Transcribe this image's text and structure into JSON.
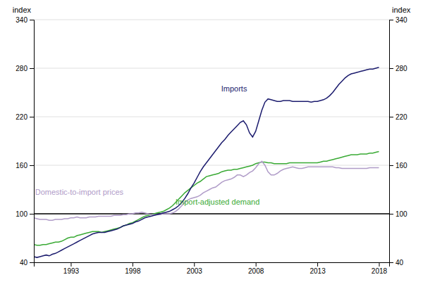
{
  "chart_data": {
    "type": "line",
    "ylabel": "index",
    "y2label": "index",
    "x": [
      1990,
      1990.25,
      1990.5,
      1990.75,
      1991,
      1991.25,
      1991.5,
      1991.75,
      1992,
      1992.25,
      1992.5,
      1992.75,
      1993,
      1993.25,
      1993.5,
      1993.75,
      1994,
      1994.25,
      1994.5,
      1994.75,
      1995,
      1995.25,
      1995.5,
      1995.75,
      1996,
      1996.25,
      1996.5,
      1996.75,
      1997,
      1997.25,
      1997.5,
      1997.75,
      1998,
      1998.25,
      1998.5,
      1998.75,
      1999,
      1999.25,
      1999.5,
      1999.75,
      2000,
      2000.25,
      2000.5,
      2000.75,
      2001,
      2001.25,
      2001.5,
      2001.75,
      2002,
      2002.25,
      2002.5,
      2002.75,
      2003,
      2003.25,
      2003.5,
      2003.75,
      2004,
      2004.25,
      2004.5,
      2004.75,
      2005,
      2005.25,
      2005.5,
      2005.75,
      2006,
      2006.25,
      2006.5,
      2006.75,
      2007,
      2007.25,
      2007.5,
      2007.75,
      2008,
      2008.25,
      2008.5,
      2008.75,
      2009,
      2009.25,
      2009.5,
      2009.75,
      2010,
      2010.25,
      2010.5,
      2010.75,
      2011,
      2011.25,
      2011.5,
      2011.75,
      2012,
      2012.25,
      2012.5,
      2012.75,
      2013,
      2013.25,
      2013.5,
      2013.75,
      2014,
      2014.25,
      2014.5,
      2014.75,
      2015,
      2015.25,
      2015.5,
      2015.75,
      2016,
      2016.25,
      2016.5,
      2016.75,
      2017,
      2017.25,
      2017.5,
      2017.75,
      2018
    ],
    "series": [
      {
        "color": "#3aaa35",
        "values": [
          62,
          61,
          61,
          62,
          62,
          63,
          64,
          65,
          65,
          66,
          68,
          70,
          71,
          71,
          73,
          74,
          75,
          76,
          77,
          78,
          78,
          78,
          77,
          78,
          79,
          80,
          81,
          82,
          83,
          85,
          86,
          88,
          89,
          91,
          93,
          95,
          97,
          98,
          99,
          100,
          101,
          102,
          103,
          105,
          107,
          110,
          114,
          118,
          122,
          126,
          129,
          132,
          135,
          138,
          140,
          143,
          146,
          147,
          148,
          149,
          150,
          152,
          153,
          154,
          154,
          155,
          155,
          156,
          157,
          158,
          159,
          160,
          162,
          163,
          164,
          164,
          163,
          163,
          162,
          162,
          162,
          162,
          162,
          163,
          163,
          163,
          163,
          163,
          163,
          163,
          163,
          163,
          163,
          164,
          165,
          165,
          166,
          167,
          168,
          169,
          170,
          171,
          172,
          173,
          173,
          173,
          174,
          174,
          174,
          175,
          175,
          176,
          177
        ]
      },
      {
        "color": "#b09cc8",
        "values": [
          95,
          94,
          93,
          93,
          93,
          92,
          92,
          93,
          93,
          93,
          94,
          94,
          95,
          95,
          96,
          95,
          95,
          95,
          96,
          96,
          96,
          97,
          97,
          97,
          97,
          97,
          98,
          98,
          98,
          99,
          99,
          100,
          100,
          101,
          101,
          102,
          101,
          100,
          99,
          99,
          99,
          99,
          100,
          100,
          100,
          101,
          103,
          106,
          110,
          114,
          117,
          119,
          120,
          121,
          123,
          126,
          128,
          130,
          132,
          133,
          136,
          139,
          141,
          142,
          143,
          145,
          148,
          148,
          146,
          148,
          151,
          153,
          157,
          162,
          165,
          160,
          152,
          148,
          148,
          150,
          153,
          155,
          156,
          157,
          158,
          157,
          156,
          156,
          157,
          158,
          158,
          158,
          158,
          158,
          158,
          158,
          158,
          158,
          157,
          157,
          156,
          156,
          156,
          156,
          156,
          156,
          156,
          156,
          156,
          157,
          157,
          157,
          157
        ]
      },
      {
        "color": "#1c1c6e",
        "values": [
          47,
          46,
          47,
          48,
          49,
          48,
          50,
          51,
          53,
          55,
          57,
          59,
          61,
          63,
          65,
          67,
          69,
          71,
          73,
          75,
          76,
          77,
          77,
          77,
          78,
          79,
          80,
          81,
          83,
          85,
          86,
          87,
          88,
          90,
          91,
          93,
          95,
          96,
          97,
          98,
          99,
          100,
          101,
          102,
          103,
          105,
          107,
          110,
          114,
          119,
          125,
          132,
          138,
          145,
          152,
          158,
          163,
          168,
          173,
          178,
          183,
          188,
          192,
          197,
          201,
          205,
          209,
          213,
          215,
          210,
          200,
          195,
          202,
          215,
          228,
          238,
          242,
          241,
          240,
          239,
          239,
          240,
          240,
          240,
          239,
          239,
          239,
          239,
          239,
          239,
          238,
          239,
          239,
          240,
          241,
          243,
          246,
          250,
          255,
          260,
          264,
          268,
          271,
          273,
          274,
          275,
          276,
          277,
          278,
          279,
          279,
          280,
          281
        ]
      }
    ],
    "xlim": [
      1990,
      2018.83
    ],
    "xticks": [
      1993,
      1998,
      2003,
      2008,
      2013,
      2018
    ],
    "ylim": [
      40,
      340
    ],
    "yticks": [
      40,
      100,
      160,
      220,
      280,
      340
    ],
    "y2lim": [
      40,
      340
    ],
    "y2ticks": [
      40,
      100,
      160,
      220,
      280,
      340
    ],
    "grid": true,
    "hline": 100,
    "annotations": [
      {
        "text": "Imports",
        "x": 2005.2,
        "y": 255,
        "color": "#1c1c6e"
      },
      {
        "text": "Domestic-to-import prices",
        "x": 1990.1,
        "y": 127,
        "color": "#b09cc8"
      },
      {
        "text": "Import-adjusted demand",
        "x": 2001.5,
        "y": 115,
        "color": "#3aaa35"
      }
    ]
  }
}
